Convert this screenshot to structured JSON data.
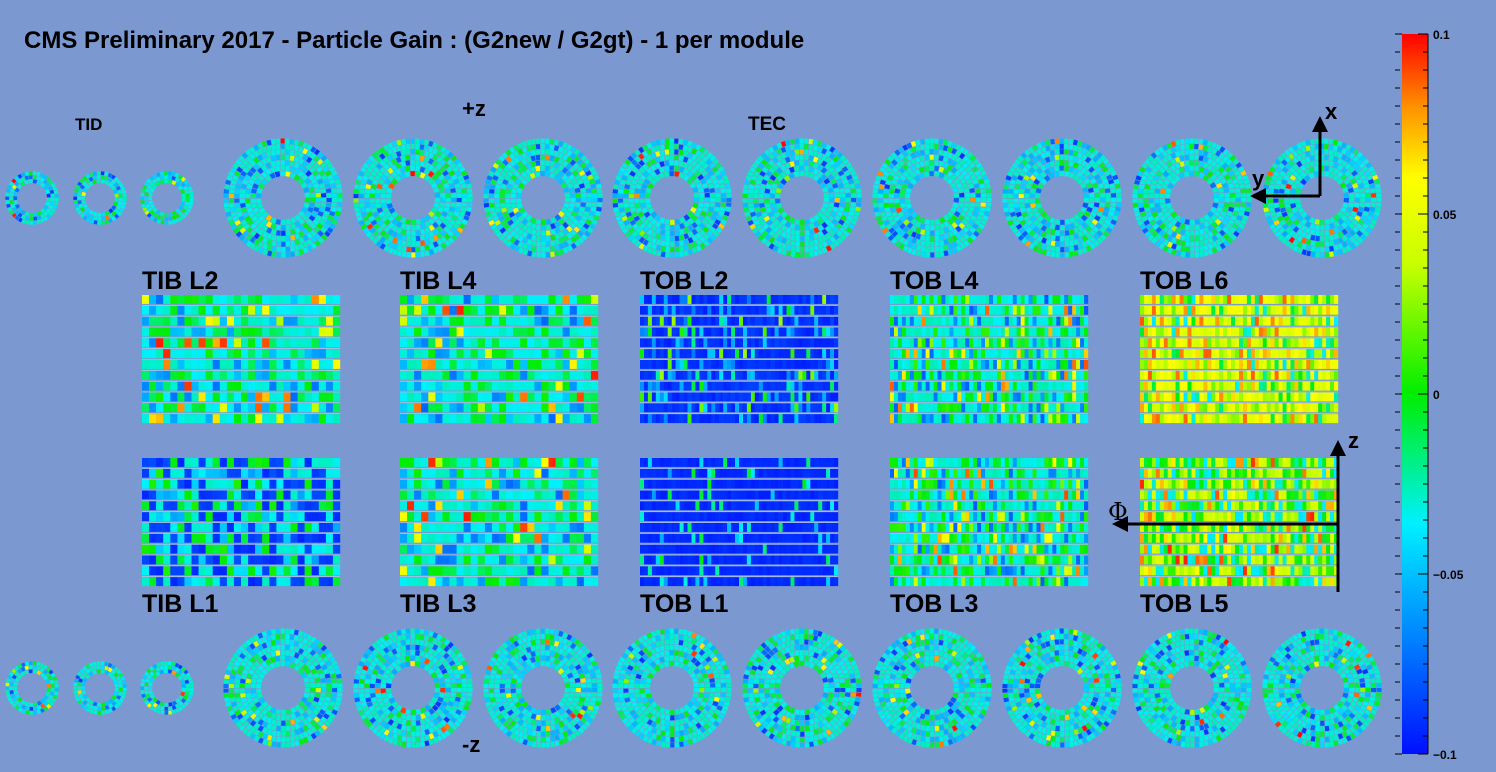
{
  "title": "CMS Preliminary 2017  -  Particle Gain :  (G2new / G2gt) - 1  per module",
  "labels": {
    "tid": "TID",
    "plus_z": "+z",
    "minus_z": "-z",
    "tec": "TEC"
  },
  "layers_top": [
    "TIB L2",
    "TIB L4",
    "TOB L2",
    "TOB L4",
    "TOB L6"
  ],
  "layers_bottom": [
    "TIB L1",
    "TIB L3",
    "TOB L1",
    "TOB L3",
    "TOB L5"
  ],
  "axes": {
    "x": "x",
    "y": "y",
    "z": "z",
    "phi": "Φ"
  },
  "colorbar": {
    "min": -0.1,
    "max": 0.1,
    "tick_labels": [
      "0.1",
      "0.05",
      "0",
      "−0.05",
      "−0.1"
    ],
    "tick_values": [
      0.1,
      0.05,
      0,
      -0.05,
      -0.1
    ]
  },
  "colors": {
    "background": "#7b99d0",
    "typical_module": "#11d8e8",
    "scale": "rainbow blue-to-red"
  }
}
